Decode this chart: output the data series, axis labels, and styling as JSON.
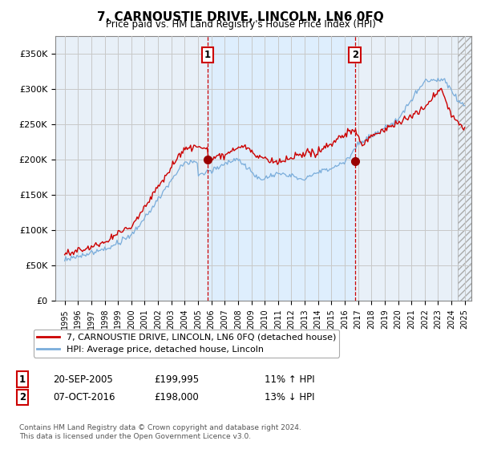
{
  "title": "7, CARNOUSTIE DRIVE, LINCOLN, LN6 0FQ",
  "subtitle": "Price paid vs. HM Land Registry's House Price Index (HPI)",
  "ylim": [
    0,
    375000
  ],
  "yticks": [
    0,
    50000,
    100000,
    150000,
    200000,
    250000,
    300000,
    350000
  ],
  "ytick_labels": [
    "£0",
    "£50K",
    "£100K",
    "£150K",
    "£200K",
    "£250K",
    "£300K",
    "£350K"
  ],
  "sale1_year": 2005.72,
  "sale1_price": 199995,
  "sale1_label": "1",
  "sale1_date": "20-SEP-2005",
  "sale1_price_str": "£199,995",
  "sale1_hpi": "11% ↑ HPI",
  "sale2_year": 2016.77,
  "sale2_price": 198000,
  "sale2_label": "2",
  "sale2_date": "07-OCT-2016",
  "sale2_price_str": "£198,000",
  "sale2_hpi": "13% ↓ HPI",
  "red_line_color": "#cc0000",
  "blue_line_color": "#7aaddb",
  "shade_color": "#ddeeff",
  "plot_bg_color": "#e8f0f8",
  "grid_color": "#c8c8c8",
  "legend1": "7, CARNOUSTIE DRIVE, LINCOLN, LN6 0FQ (detached house)",
  "legend2": "HPI: Average price, detached house, Lincoln",
  "footer": "Contains HM Land Registry data © Crown copyright and database right 2024.\nThis data is licensed under the Open Government Licence v3.0."
}
